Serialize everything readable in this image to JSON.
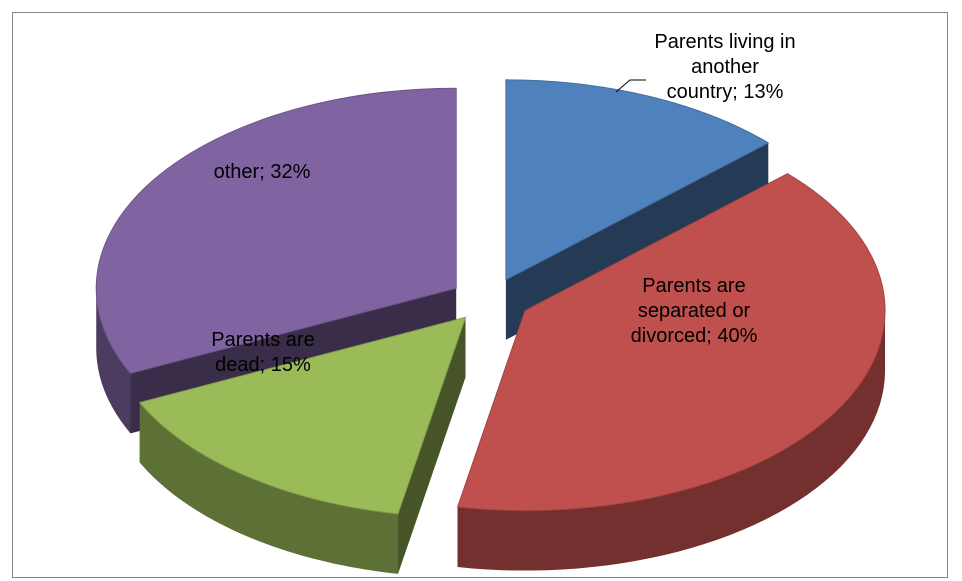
{
  "chart_data": {
    "type": "pie",
    "style": "3d-exploded",
    "title": "",
    "legend": "none",
    "series": [
      {
        "slices": [
          {
            "label": "Parents living in another country",
            "value": 13,
            "display": [
              "Parents living in",
              "another",
              "country; 13%"
            ],
            "color": "#4F81BD"
          },
          {
            "label": "Parents are separated or divorced",
            "value": 40,
            "display": [
              "Parents are",
              "separated or",
              "divorced; 40%"
            ],
            "color": "#C0504D"
          },
          {
            "label": "Parents are dead",
            "value": 15,
            "display": [
              "Parents are",
              "dead; 15%"
            ],
            "color": "#9BBB59"
          },
          {
            "label": "other",
            "value": 32,
            "display": [
              "other; 32%"
            ],
            "color": "#8064A2"
          }
        ]
      }
    ]
  }
}
